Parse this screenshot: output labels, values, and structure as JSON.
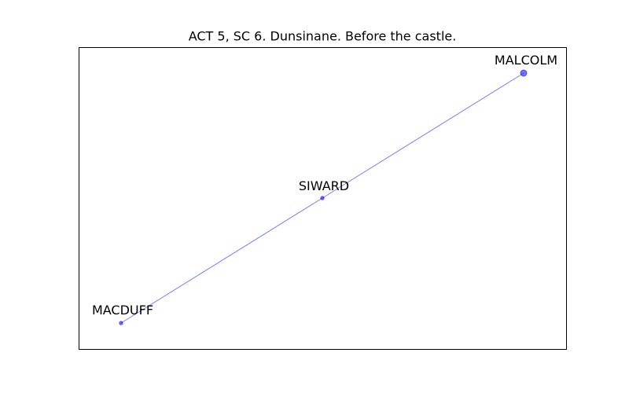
{
  "title": "ACT 5, SC 6. Dunsinane. Before the castle.",
  "colors": {
    "node": "#0000ff",
    "edge": "#0000ff",
    "frame": "#000000"
  },
  "nodes": [
    {
      "id": "MALCOLM",
      "label": "MALCOLM",
      "size": "large"
    },
    {
      "id": "SIWARD",
      "label": "SIWARD",
      "size": "small"
    },
    {
      "id": "MACDUFF",
      "label": "MACDUFF",
      "size": "small"
    }
  ],
  "edges": [
    {
      "source": "MALCOLM",
      "target": "SIWARD"
    },
    {
      "source": "SIWARD",
      "target": "MACDUFF"
    }
  ]
}
